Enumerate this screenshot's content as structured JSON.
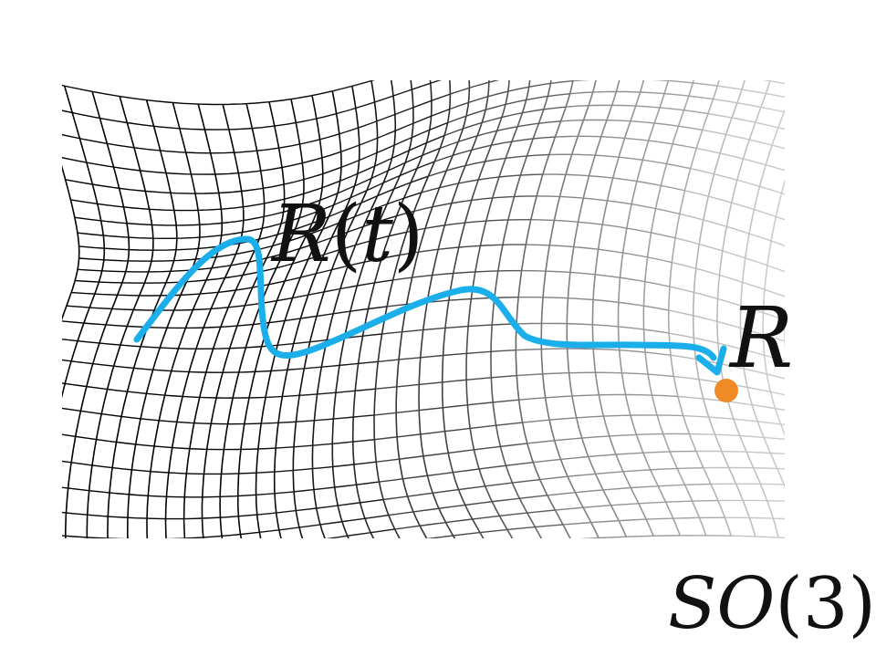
{
  "labels": {
    "path": {
      "symbol": "R",
      "open": "(",
      "variable": "t",
      "close": ")"
    },
    "target": {
      "symbol": "R"
    },
    "manifold": {
      "symbol": "SO",
      "open": "(",
      "dimension": "3",
      "close": ")"
    }
  },
  "colors": {
    "background": "#ffffff",
    "mesh_dark": "#000000",
    "mesh_light": "#c8c8c8",
    "path": "#1aaeea",
    "point": "#f08a24",
    "text": "#111111"
  }
}
